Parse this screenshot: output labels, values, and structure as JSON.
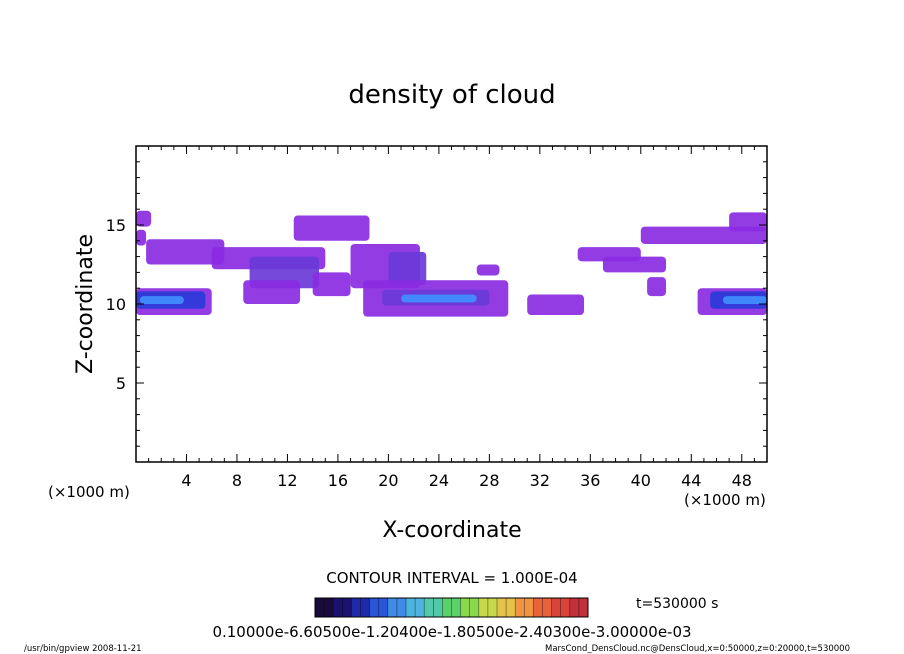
{
  "chart_data": {
    "type": "heatmap",
    "title": "density of cloud",
    "xlabel": "X-coordinate",
    "ylabel": "Z-coordinate",
    "x_unit_label": "(×1000 m)",
    "z_unit_label": "(×1000 m)",
    "xlim": [
      0,
      50
    ],
    "ylim": [
      0,
      20
    ],
    "x_ticks": [
      4,
      8,
      12,
      16,
      20,
      24,
      28,
      32,
      36,
      40,
      44,
      48
    ],
    "y_ticks": [
      5,
      10,
      15
    ],
    "x_tick_labels": [
      "4",
      "8",
      "12",
      "16",
      "20",
      "24",
      "28",
      "32",
      "36",
      "40",
      "44",
      "48"
    ],
    "y_tick_labels": [
      "5",
      "10",
      "15"
    ],
    "contour_interval_text": "CONTOUR INTERVAL = 1.000E-04",
    "time_text": "t=530000 s",
    "colorbar_labels_text": "0.10000e-6.60500e-1.20400e-1.80500e-2.40300e-3.00000e-03",
    "colorbar_colors": [
      "#1a0a3a",
      "#1b1270",
      "#1f2aa8",
      "#2a55d8",
      "#3f8be6",
      "#4fb3e0",
      "#52c9a8",
      "#5ad26a",
      "#8ad84c",
      "#c9d84a",
      "#e6c24a",
      "#ef9442",
      "#e8633c",
      "#d8433a",
      "#c2303a"
    ],
    "cloud_colors": {
      "low": "#8a2be2",
      "mid": "#6a3ad8",
      "high": "#2a3bd8",
      "peak": "#3f8fff"
    },
    "cloud_regions": [
      {
        "level": "low",
        "x": [
          0,
          1.2
        ],
        "z": [
          14.9,
          15.9
        ]
      },
      {
        "level": "low",
        "x": [
          0,
          0.8
        ],
        "z": [
          13.7,
          14.7
        ]
      },
      {
        "level": "low",
        "x": [
          0.8,
          7
        ],
        "z": [
          12.5,
          14.1
        ]
      },
      {
        "level": "low",
        "x": [
          6,
          15
        ],
        "z": [
          12.2,
          13.6
        ]
      },
      {
        "level": "mid",
        "x": [
          9,
          14.5
        ],
        "z": [
          11.0,
          13.0
        ]
      },
      {
        "level": "low",
        "x": [
          8.5,
          13
        ],
        "z": [
          10.0,
          11.5
        ]
      },
      {
        "level": "low",
        "x": [
          12.5,
          18.5
        ],
        "z": [
          14.0,
          15.6
        ]
      },
      {
        "level": "low",
        "x": [
          14,
          17
        ],
        "z": [
          10.5,
          12.0
        ]
      },
      {
        "level": "low",
        "x": [
          17,
          22.5
        ],
        "z": [
          11.0,
          13.8
        ]
      },
      {
        "level": "mid",
        "x": [
          20,
          23
        ],
        "z": [
          11.2,
          13.3
        ]
      },
      {
        "level": "low",
        "x": [
          18,
          29.5
        ],
        "z": [
          9.2,
          11.5
        ]
      },
      {
        "level": "mid",
        "x": [
          19.5,
          28
        ],
        "z": [
          9.9,
          10.9
        ]
      },
      {
        "level": "peak",
        "x": [
          21,
          27
        ],
        "z": [
          10.1,
          10.6
        ]
      },
      {
        "level": "low",
        "x": [
          27,
          28.8
        ],
        "z": [
          11.8,
          12.5
        ]
      },
      {
        "level": "low",
        "x": [
          31,
          35.5
        ],
        "z": [
          9.3,
          10.6
        ]
      },
      {
        "level": "low",
        "x": [
          35,
          40
        ],
        "z": [
          12.7,
          13.6
        ]
      },
      {
        "level": "low",
        "x": [
          37,
          42
        ],
        "z": [
          12.0,
          13.0
        ]
      },
      {
        "level": "low",
        "x": [
          40,
          50
        ],
        "z": [
          13.8,
          14.9
        ]
      },
      {
        "level": "low",
        "x": [
          47,
          50
        ],
        "z": [
          14.6,
          15.8
        ]
      },
      {
        "level": "low",
        "x": [
          40.5,
          42
        ],
        "z": [
          10.5,
          11.7
        ]
      },
      {
        "level": "low",
        "x": [
          0,
          6
        ],
        "z": [
          9.3,
          11.0
        ]
      },
      {
        "level": "high",
        "x": [
          0,
          5.5
        ],
        "z": [
          9.7,
          10.8
        ]
      },
      {
        "level": "peak",
        "x": [
          0.3,
          3.8
        ],
        "z": [
          10.0,
          10.5
        ]
      },
      {
        "level": "low",
        "x": [
          44.5,
          50
        ],
        "z": [
          9.3,
          11.0
        ]
      },
      {
        "level": "high",
        "x": [
          45.5,
          50
        ],
        "z": [
          9.7,
          10.8
        ]
      },
      {
        "level": "peak",
        "x": [
          46.5,
          50
        ],
        "z": [
          10.0,
          10.5
        ]
      }
    ]
  },
  "footer": {
    "left_text": "/usr/bin/gpview  2008-11-21",
    "right_text": "MarsCond_DensCloud.nc@DensCloud,x=0:50000,z=0:20000,t=530000"
  }
}
